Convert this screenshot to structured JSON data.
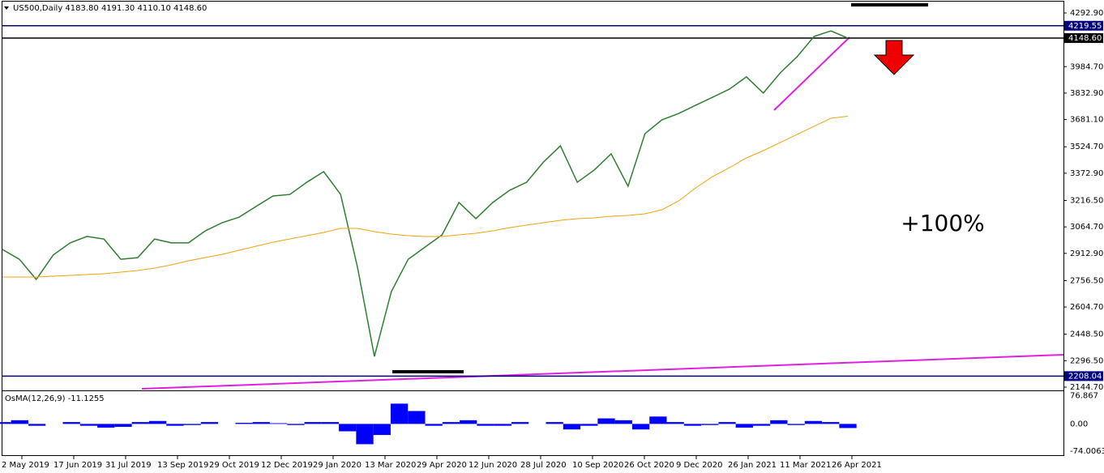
{
  "chart_data": [
    {
      "type": "line",
      "title": "US500,Daily  4183.80 4191.30 4110.10 4148.60",
      "x_labels": [
        "2 May 2019",
        "17 Jun 2019",
        "31 Jul 2019",
        "13 Sep 2019",
        "29 Oct 2019",
        "12 Dec 2019",
        "29 Jan 2020",
        "13 Mar 2020",
        "29 Apr 2020",
        "12 Jun 2020",
        "28 Jul 2020",
        "10 Sep 2020",
        "26 Oct 2020",
        "9 Dec 2020",
        "26 Jan 2021",
        "11 Mar 2021",
        "26 Apr 2021"
      ],
      "series": [
        {
          "color": "#2e7d32",
          "values": [
            2935,
            2879,
            2763,
            2903,
            2973,
            3010,
            2995,
            2879,
            2888,
            2995,
            2973,
            2973,
            3042,
            3089,
            3121,
            3182,
            3242,
            3251,
            3321,
            3382,
            3251,
            2833,
            2321,
            2693,
            2879,
            2949,
            3019,
            3205,
            3112,
            3205,
            3275,
            3321,
            3437,
            3530,
            3321,
            3391,
            3484,
            3298,
            3600,
            3679,
            3716,
            3763,
            3809,
            3856,
            3926,
            3833,
            3949,
            4042,
            4158,
            4190,
            4148.6
          ]
        },
        {
          "color": "#f0a30a",
          "values": [
            2777.1,
            2777.1,
            2777.1,
            2781.7,
            2786.4,
            2791.0,
            2795.7,
            2805.0,
            2814.3,
            2828.2,
            2846.8,
            2870.1,
            2888.7,
            2907.3,
            2930.5,
            2953.8,
            2977.0,
            2995.6,
            3014.2,
            3032.8,
            3056.1,
            3056.1,
            3037.5,
            3023.5,
            3014.2,
            3009.6,
            3009.6,
            3018.9,
            3028.2,
            3042.1,
            3060.7,
            3074.7,
            3088.6,
            3102.6,
            3111.9,
            3116.5,
            3125.8,
            3130.5,
            3139.8,
            3163.0,
            3214.2,
            3288.6,
            3353.7,
            3404.8,
            3460.6,
            3502.5,
            3549.0,
            3595.5,
            3642.0,
            3688.5,
            3700
          ]
        }
      ],
      "ylim": [
        2126.1,
        4367.3
      ],
      "yticks": [
        {
          "value": 4292.9,
          "label": "4292.90"
        },
        {
          "value": 3984.7,
          "label": "3984.70"
        },
        {
          "value": 3832.9,
          "label": "3832.90"
        },
        {
          "value": 3681.1,
          "label": "3681.10"
        },
        {
          "value": 3524.7,
          "label": "3524.70"
        },
        {
          "value": 3372.9,
          "label": "3372.90"
        },
        {
          "value": 3216.5,
          "label": "3216.50"
        },
        {
          "value": 3064.7,
          "label": "3064.70"
        },
        {
          "value": 2912.9,
          "label": "2912.90"
        },
        {
          "value": 2756.5,
          "label": "2756.50"
        },
        {
          "value": 2604.7,
          "label": "2604.70"
        },
        {
          "value": 2448.5,
          "label": "2448.50"
        },
        {
          "value": 2296.5,
          "label": "2296.50"
        },
        {
          "value": 2144.7,
          "label": "2144.70"
        }
      ],
      "levels": [
        {
          "value": 4219.55,
          "label": "4219.55",
          "color": "#000080"
        },
        {
          "value": 4148.6,
          "label": "4148.60",
          "color": "#000000"
        },
        {
          "value": 2208.04,
          "label": "2208.04",
          "color": "#000080"
        }
      ],
      "annotation": "+100%"
    },
    {
      "type": "bar",
      "title": "OsMA(12,26,9) -11.1255",
      "color": "#0000ff",
      "values": [
        5,
        10,
        -5,
        0,
        5,
        -5,
        -10,
        -8,
        5,
        8,
        -5,
        -3,
        5,
        0,
        3,
        5,
        2,
        -3,
        5,
        5,
        -20,
        -55,
        -30,
        55,
        35,
        -5,
        5,
        10,
        -5,
        -5,
        5,
        0,
        5,
        -15,
        -5,
        15,
        10,
        -15,
        20,
        5,
        -5,
        -3,
        5,
        -10,
        -5,
        10,
        -3,
        8,
        5,
        -11.1255
      ],
      "ylim": [
        -86.97,
        88.75
      ],
      "yticks": [
        76.867,
        {
          "value": 0,
          "label": "0.00"
        },
        -74.0063
      ]
    }
  ]
}
